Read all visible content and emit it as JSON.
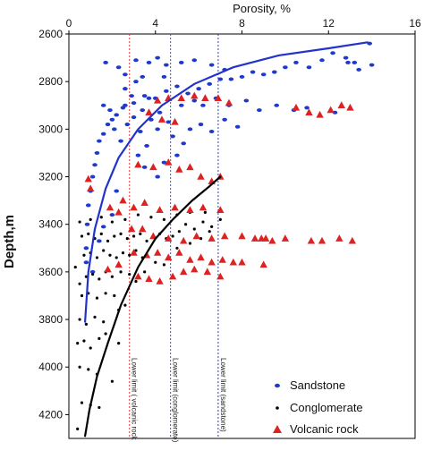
{
  "chart_data": {
    "type": "scatter",
    "xlabel": "Porosity, %",
    "ylabel": "Depth,m",
    "xlim": [
      0,
      16
    ],
    "ylim": [
      2600,
      4300
    ],
    "x_axis_position": "top",
    "y_axis_reversed": true,
    "x_ticks": [
      "0",
      "4",
      "8",
      "12",
      "16"
    ],
    "y_ticks": [
      "2600",
      "2800",
      "3000",
      "3200",
      "3400",
      "3600",
      "3800",
      "4000",
      "4200"
    ],
    "grid": false,
    "legend_position": "bottom-right",
    "limits": [
      {
        "label": "Lower limit ( volcanic rock",
        "x": 2.8,
        "color": "#e03a3a"
      },
      {
        "label": "Lower limit (conglomerate)",
        "x": 4.7,
        "color": "#555577"
      },
      {
        "label": "Lower limit (sandstone)",
        "x": 6.9,
        "color": "#2a3ad0"
      }
    ],
    "trend_lines": [
      {
        "series": "Sandstone",
        "color": "#2233cc",
        "points": [
          [
            0.75,
            3810
          ],
          [
            0.9,
            3600
          ],
          [
            1.2,
            3420
          ],
          [
            1.7,
            3250
          ],
          [
            2.3,
            3120
          ],
          [
            3.2,
            3000
          ],
          [
            4.3,
            2900
          ],
          [
            5.8,
            2810
          ],
          [
            7.6,
            2740
          ],
          [
            9.7,
            2690
          ],
          [
            12.0,
            2660
          ],
          [
            13.8,
            2635
          ]
        ]
      },
      {
        "series": "Conglomerate",
        "color": "#000000",
        "points": [
          [
            0.75,
            4290
          ],
          [
            0.95,
            4180
          ],
          [
            1.3,
            4040
          ],
          [
            1.8,
            3900
          ],
          [
            2.4,
            3740
          ],
          [
            3.2,
            3580
          ],
          [
            4.0,
            3460
          ],
          [
            4.8,
            3380
          ],
          [
            5.7,
            3300
          ],
          [
            6.5,
            3240
          ],
          [
            7.0,
            3200
          ]
        ]
      }
    ],
    "series": [
      {
        "name": "Sandstone",
        "marker": "circle",
        "color": "#1f39cc",
        "points": [
          [
            13.9,
            2640
          ],
          [
            12.2,
            2680
          ],
          [
            12.8,
            2700
          ],
          [
            11.7,
            2710
          ],
          [
            13.2,
            2720
          ],
          [
            14.0,
            2730
          ],
          [
            11.1,
            2740
          ],
          [
            10.5,
            2720
          ],
          [
            10.0,
            2740
          ],
          [
            9.5,
            2760
          ],
          [
            9.0,
            2770
          ],
          [
            8.5,
            2760
          ],
          [
            8.0,
            2780
          ],
          [
            7.5,
            2790
          ],
          [
            7.0,
            2790
          ],
          [
            6.5,
            2810
          ],
          [
            6.0,
            2830
          ],
          [
            5.5,
            2850
          ],
          [
            5.0,
            2820
          ],
          [
            4.5,
            2840
          ],
          [
            4.0,
            2870
          ],
          [
            3.5,
            2860
          ],
          [
            3.0,
            2890
          ],
          [
            2.5,
            2910
          ],
          [
            2.2,
            2940
          ],
          [
            2.0,
            2960
          ],
          [
            1.8,
            2980
          ],
          [
            1.6,
            3020
          ],
          [
            1.4,
            3050
          ],
          [
            1.3,
            3100
          ],
          [
            1.2,
            3150
          ],
          [
            1.1,
            3200
          ],
          [
            1.0,
            3260
          ],
          [
            0.9,
            3320
          ],
          [
            0.85,
            3400
          ],
          [
            0.8,
            3500
          ],
          [
            0.8,
            3560
          ],
          [
            2.6,
            2900
          ],
          [
            3.0,
            2950
          ],
          [
            3.4,
            2920
          ],
          [
            3.8,
            2960
          ],
          [
            4.2,
            2930
          ],
          [
            4.6,
            2970
          ],
          [
            5.2,
            2900
          ],
          [
            5.8,
            2880
          ],
          [
            6.2,
            2900
          ],
          [
            6.8,
            2870
          ],
          [
            7.4,
            2900
          ],
          [
            8.2,
            2880
          ],
          [
            8.8,
            2920
          ],
          [
            9.6,
            2900
          ],
          [
            10.4,
            2920
          ],
          [
            11.0,
            2910
          ],
          [
            2.6,
            2830
          ],
          [
            2.9,
            2860
          ],
          [
            3.1,
            2800
          ],
          [
            3.4,
            2780
          ],
          [
            3.7,
            2870
          ],
          [
            4.4,
            2780
          ],
          [
            5.2,
            2720
          ],
          [
            5.8,
            2710
          ],
          [
            6.6,
            2730
          ],
          [
            7.2,
            2750
          ],
          [
            1.7,
            2720
          ],
          [
            2.3,
            2740
          ],
          [
            2.6,
            2770
          ],
          [
            3.1,
            2710
          ],
          [
            3.7,
            2720
          ],
          [
            4.1,
            2700
          ],
          [
            4.5,
            2730
          ],
          [
            1.6,
            2900
          ],
          [
            1.9,
            2920
          ],
          [
            2.1,
            3000
          ],
          [
            2.4,
            3050
          ],
          [
            2.7,
            2980
          ],
          [
            3.3,
            3010
          ],
          [
            3.6,
            3070
          ],
          [
            4.1,
            3000
          ],
          [
            4.8,
            3030
          ],
          [
            5.3,
            3060
          ],
          [
            5.6,
            3000
          ],
          [
            6.1,
            2980
          ],
          [
            6.6,
            3010
          ],
          [
            7.2,
            2960
          ],
          [
            7.8,
            2990
          ],
          [
            3.2,
            3110
          ],
          [
            3.5,
            3160
          ],
          [
            4.4,
            3140
          ],
          [
            5.0,
            3110
          ],
          [
            4.1,
            3200
          ],
          [
            2.2,
            3260
          ],
          [
            2.0,
            3360
          ],
          [
            1.6,
            3410
          ],
          [
            1.4,
            3470
          ],
          [
            1.1,
            3600
          ],
          [
            12.3,
            2930
          ],
          [
            12.9,
            2720
          ],
          [
            13.4,
            2750
          ]
        ]
      },
      {
        "name": "Conglomerate",
        "marker": "dot",
        "color": "#000000",
        "points": [
          [
            0.6,
            3450
          ],
          [
            0.9,
            3440
          ],
          [
            1.2,
            3460
          ],
          [
            1.5,
            3440
          ],
          [
            1.8,
            3470
          ],
          [
            2.1,
            3450
          ],
          [
            2.4,
            3440
          ],
          [
            2.7,
            3460
          ],
          [
            3.0,
            3450
          ],
          [
            3.3,
            3440
          ],
          [
            3.6,
            3470
          ],
          [
            3.9,
            3450
          ],
          [
            4.2,
            3440
          ],
          [
            4.5,
            3460
          ],
          [
            4.8,
            3450
          ],
          [
            5.1,
            3430
          ],
          [
            5.4,
            3400
          ],
          [
            5.8,
            3420
          ],
          [
            6.2,
            3390
          ],
          [
            6.6,
            3410
          ],
          [
            7.0,
            3380
          ],
          [
            0.7,
            3530
          ],
          [
            1.0,
            3520
          ],
          [
            1.3,
            3540
          ],
          [
            1.6,
            3510
          ],
          [
            1.9,
            3530
          ],
          [
            2.2,
            3540
          ],
          [
            2.5,
            3520
          ],
          [
            2.8,
            3530
          ],
          [
            3.1,
            3510
          ],
          [
            3.4,
            3540
          ],
          [
            0.8,
            3620
          ],
          [
            1.1,
            3610
          ],
          [
            1.4,
            3630
          ],
          [
            1.7,
            3600
          ],
          [
            2.0,
            3620
          ],
          [
            2.4,
            3600
          ],
          [
            2.8,
            3610
          ],
          [
            0.6,
            3700
          ],
          [
            0.9,
            3690
          ],
          [
            1.3,
            3710
          ],
          [
            1.7,
            3690
          ],
          [
            2.1,
            3700
          ],
          [
            0.5,
            3800
          ],
          [
            0.8,
            3820
          ],
          [
            1.2,
            3790
          ],
          [
            1.6,
            3810
          ],
          [
            0.4,
            3900
          ],
          [
            0.7,
            3890
          ],
          [
            1.0,
            3920
          ],
          [
            1.4,
            3880
          ],
          [
            0.5,
            4000
          ],
          [
            0.9,
            4010
          ],
          [
            1.3,
            4030
          ],
          [
            0.6,
            4150
          ],
          [
            1.0,
            4160
          ],
          [
            1.4,
            4170
          ],
          [
            0.4,
            4260
          ],
          [
            1.7,
            3860
          ],
          [
            2.3,
            3760
          ],
          [
            2.6,
            3740
          ],
          [
            3.1,
            3640
          ],
          [
            3.5,
            3600
          ],
          [
            4.0,
            3560
          ],
          [
            4.4,
            3570
          ],
          [
            5.0,
            3500
          ],
          [
            5.6,
            3480
          ],
          [
            6.1,
            3460
          ],
          [
            6.5,
            3430
          ],
          [
            0.5,
            3390
          ],
          [
            1.0,
            3380
          ],
          [
            1.5,
            3370
          ],
          [
            2.0,
            3390
          ],
          [
            2.6,
            3380
          ],
          [
            3.2,
            3360
          ],
          [
            3.8,
            3370
          ],
          [
            4.4,
            3380
          ],
          [
            5.0,
            3360
          ],
          [
            5.6,
            3350
          ],
          [
            6.3,
            3350
          ],
          [
            0.3,
            3580
          ],
          [
            0.5,
            3650
          ],
          [
            2.3,
            3900
          ],
          [
            2.0,
            4060
          ]
        ]
      },
      {
        "name": "Volcanic rock",
        "marker": "triangle",
        "color": "#dd2222",
        "points": [
          [
            4.1,
            2880
          ],
          [
            4.6,
            2870
          ],
          [
            5.2,
            2870
          ],
          [
            5.8,
            2860
          ],
          [
            6.3,
            2870
          ],
          [
            6.9,
            2870
          ],
          [
            7.4,
            2890
          ],
          [
            3.7,
            2930
          ],
          [
            4.3,
            2960
          ],
          [
            4.9,
            2970
          ],
          [
            10.5,
            2910
          ],
          [
            11.1,
            2930
          ],
          [
            11.6,
            2940
          ],
          [
            12.1,
            2920
          ],
          [
            12.6,
            2900
          ],
          [
            13.0,
            2910
          ],
          [
            3.2,
            3150
          ],
          [
            3.9,
            3160
          ],
          [
            4.6,
            3140
          ],
          [
            5.1,
            3170
          ],
          [
            5.6,
            3160
          ],
          [
            6.1,
            3200
          ],
          [
            6.6,
            3220
          ],
          [
            7.0,
            3200
          ],
          [
            0.9,
            3210
          ],
          [
            1.0,
            3250
          ],
          [
            1.9,
            3330
          ],
          [
            2.3,
            3350
          ],
          [
            2.5,
            3300
          ],
          [
            3.0,
            3330
          ],
          [
            3.5,
            3310
          ],
          [
            4.2,
            3340
          ],
          [
            4.9,
            3330
          ],
          [
            5.6,
            3340
          ],
          [
            6.2,
            3330
          ],
          [
            7.0,
            3340
          ],
          [
            2.9,
            3420
          ],
          [
            3.4,
            3420
          ],
          [
            3.9,
            3450
          ],
          [
            4.6,
            3460
          ],
          [
            5.3,
            3470
          ],
          [
            5.9,
            3450
          ],
          [
            6.6,
            3460
          ],
          [
            7.2,
            3450
          ],
          [
            8.0,
            3450
          ],
          [
            8.6,
            3460
          ],
          [
            8.9,
            3460
          ],
          [
            9.1,
            3460
          ],
          [
            9.4,
            3470
          ],
          [
            10.0,
            3460
          ],
          [
            11.2,
            3470
          ],
          [
            11.7,
            3470
          ],
          [
            12.5,
            3460
          ],
          [
            13.1,
            3470
          ],
          [
            3.0,
            3520
          ],
          [
            3.6,
            3530
          ],
          [
            4.1,
            3520
          ],
          [
            4.6,
            3540
          ],
          [
            5.1,
            3520
          ],
          [
            5.6,
            3550
          ],
          [
            6.1,
            3540
          ],
          [
            6.6,
            3560
          ],
          [
            7.1,
            3550
          ],
          [
            7.6,
            3560
          ],
          [
            3.2,
            3620
          ],
          [
            3.7,
            3630
          ],
          [
            4.2,
            3640
          ],
          [
            4.8,
            3620
          ],
          [
            5.3,
            3600
          ],
          [
            5.8,
            3590
          ],
          [
            8.0,
            3560
          ],
          [
            9.0,
            3570
          ],
          [
            6.4,
            3600
          ],
          [
            7.0,
            3620
          ],
          [
            1.8,
            3590
          ],
          [
            2.3,
            3570
          ]
        ]
      }
    ]
  }
}
